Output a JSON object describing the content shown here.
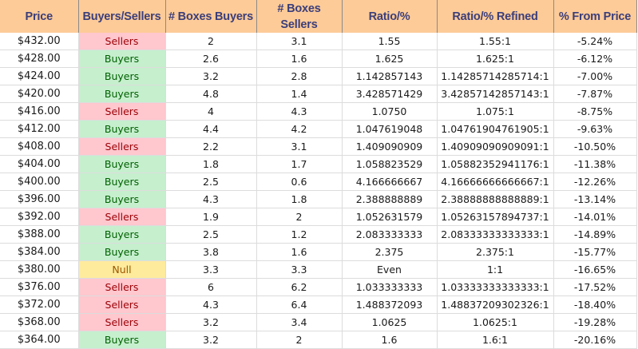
{
  "header": {
    "columns": [
      "Price",
      "Buyers/Sellers",
      "# Boxes Buyers",
      "# Boxes Sellers",
      "Ratio/%",
      "Ratio/% Refined",
      "% From Price"
    ]
  },
  "colors": {
    "header_bg": "#fdcb98",
    "header_text": "#3b3e7a",
    "sellers_bg": "#ffc7ce",
    "sellers_text": "#9c0006",
    "buyers_bg": "#c6efce",
    "buyers_text": "#006100",
    "null_bg": "#ffeb9c",
    "null_text": "#9c5700"
  },
  "rows": [
    {
      "price": "$432.00",
      "side": "Sellers",
      "buyers": "2",
      "sellers": "3.1",
      "ratio": "1.55",
      "refined": "1.55:1",
      "from_price": "-5.24%"
    },
    {
      "price": "$428.00",
      "side": "Buyers",
      "buyers": "2.6",
      "sellers": "1.6",
      "ratio": "1.625",
      "refined": "1.625:1",
      "from_price": "-6.12%"
    },
    {
      "price": "$424.00",
      "side": "Buyers",
      "buyers": "3.2",
      "sellers": "2.8",
      "ratio": "1.142857143",
      "refined": "1.14285714285714:1",
      "from_price": "-7.00%"
    },
    {
      "price": "$420.00",
      "side": "Buyers",
      "buyers": "4.8",
      "sellers": "1.4",
      "ratio": "3.428571429",
      "refined": "3.42857142857143:1",
      "from_price": "-7.87%"
    },
    {
      "price": "$416.00",
      "side": "Sellers",
      "buyers": "4",
      "sellers": "4.3",
      "ratio": "1.0750",
      "refined": "1.075:1",
      "from_price": "-8.75%"
    },
    {
      "price": "$412.00",
      "side": "Buyers",
      "buyers": "4.4",
      "sellers": "4.2",
      "ratio": "1.047619048",
      "refined": "1.04761904761905:1",
      "from_price": "-9.63%"
    },
    {
      "price": "$408.00",
      "side": "Sellers",
      "buyers": "2.2",
      "sellers": "3.1",
      "ratio": "1.409090909",
      "refined": "1.40909090909091:1",
      "from_price": "-10.50%"
    },
    {
      "price": "$404.00",
      "side": "Buyers",
      "buyers": "1.8",
      "sellers": "1.7",
      "ratio": "1.058823529",
      "refined": "1.05882352941176:1",
      "from_price": "-11.38%"
    },
    {
      "price": "$400.00",
      "side": "Buyers",
      "buyers": "2.5",
      "sellers": "0.6",
      "ratio": "4.166666667",
      "refined": "4.16666666666667:1",
      "from_price": "-12.26%"
    },
    {
      "price": "$396.00",
      "side": "Buyers",
      "buyers": "4.3",
      "sellers": "1.8",
      "ratio": "2.388888889",
      "refined": "2.38888888888889:1",
      "from_price": "-13.14%"
    },
    {
      "price": "$392.00",
      "side": "Sellers",
      "buyers": "1.9",
      "sellers": "2",
      "ratio": "1.052631579",
      "refined": "1.05263157894737:1",
      "from_price": "-14.01%"
    },
    {
      "price": "$388.00",
      "side": "Buyers",
      "buyers": "2.5",
      "sellers": "1.2",
      "ratio": "2.083333333",
      "refined": "2.08333333333333:1",
      "from_price": "-14.89%"
    },
    {
      "price": "$384.00",
      "side": "Buyers",
      "buyers": "3.8",
      "sellers": "1.6",
      "ratio": "2.375",
      "refined": "2.375:1",
      "from_price": "-15.77%"
    },
    {
      "price": "$380.00",
      "side": "Null",
      "buyers": "3.3",
      "sellers": "3.3",
      "ratio": "Even",
      "refined": "1:1",
      "from_price": "-16.65%"
    },
    {
      "price": "$376.00",
      "side": "Sellers",
      "buyers": "6",
      "sellers": "6.2",
      "ratio": "1.033333333",
      "refined": "1.03333333333333:1",
      "from_price": "-17.52%"
    },
    {
      "price": "$372.00",
      "side": "Sellers",
      "buyers": "4.3",
      "sellers": "6.4",
      "ratio": "1.488372093",
      "refined": "1.48837209302326:1",
      "from_price": "-18.40%"
    },
    {
      "price": "$368.00",
      "side": "Sellers",
      "buyers": "3.2",
      "sellers": "3.4",
      "ratio": "1.0625",
      "refined": "1.0625:1",
      "from_price": "-19.28%"
    },
    {
      "price": "$364.00",
      "side": "Buyers",
      "buyers": "3.2",
      "sellers": "2",
      "ratio": "1.6",
      "refined": "1.6:1",
      "from_price": "-20.16%"
    }
  ]
}
